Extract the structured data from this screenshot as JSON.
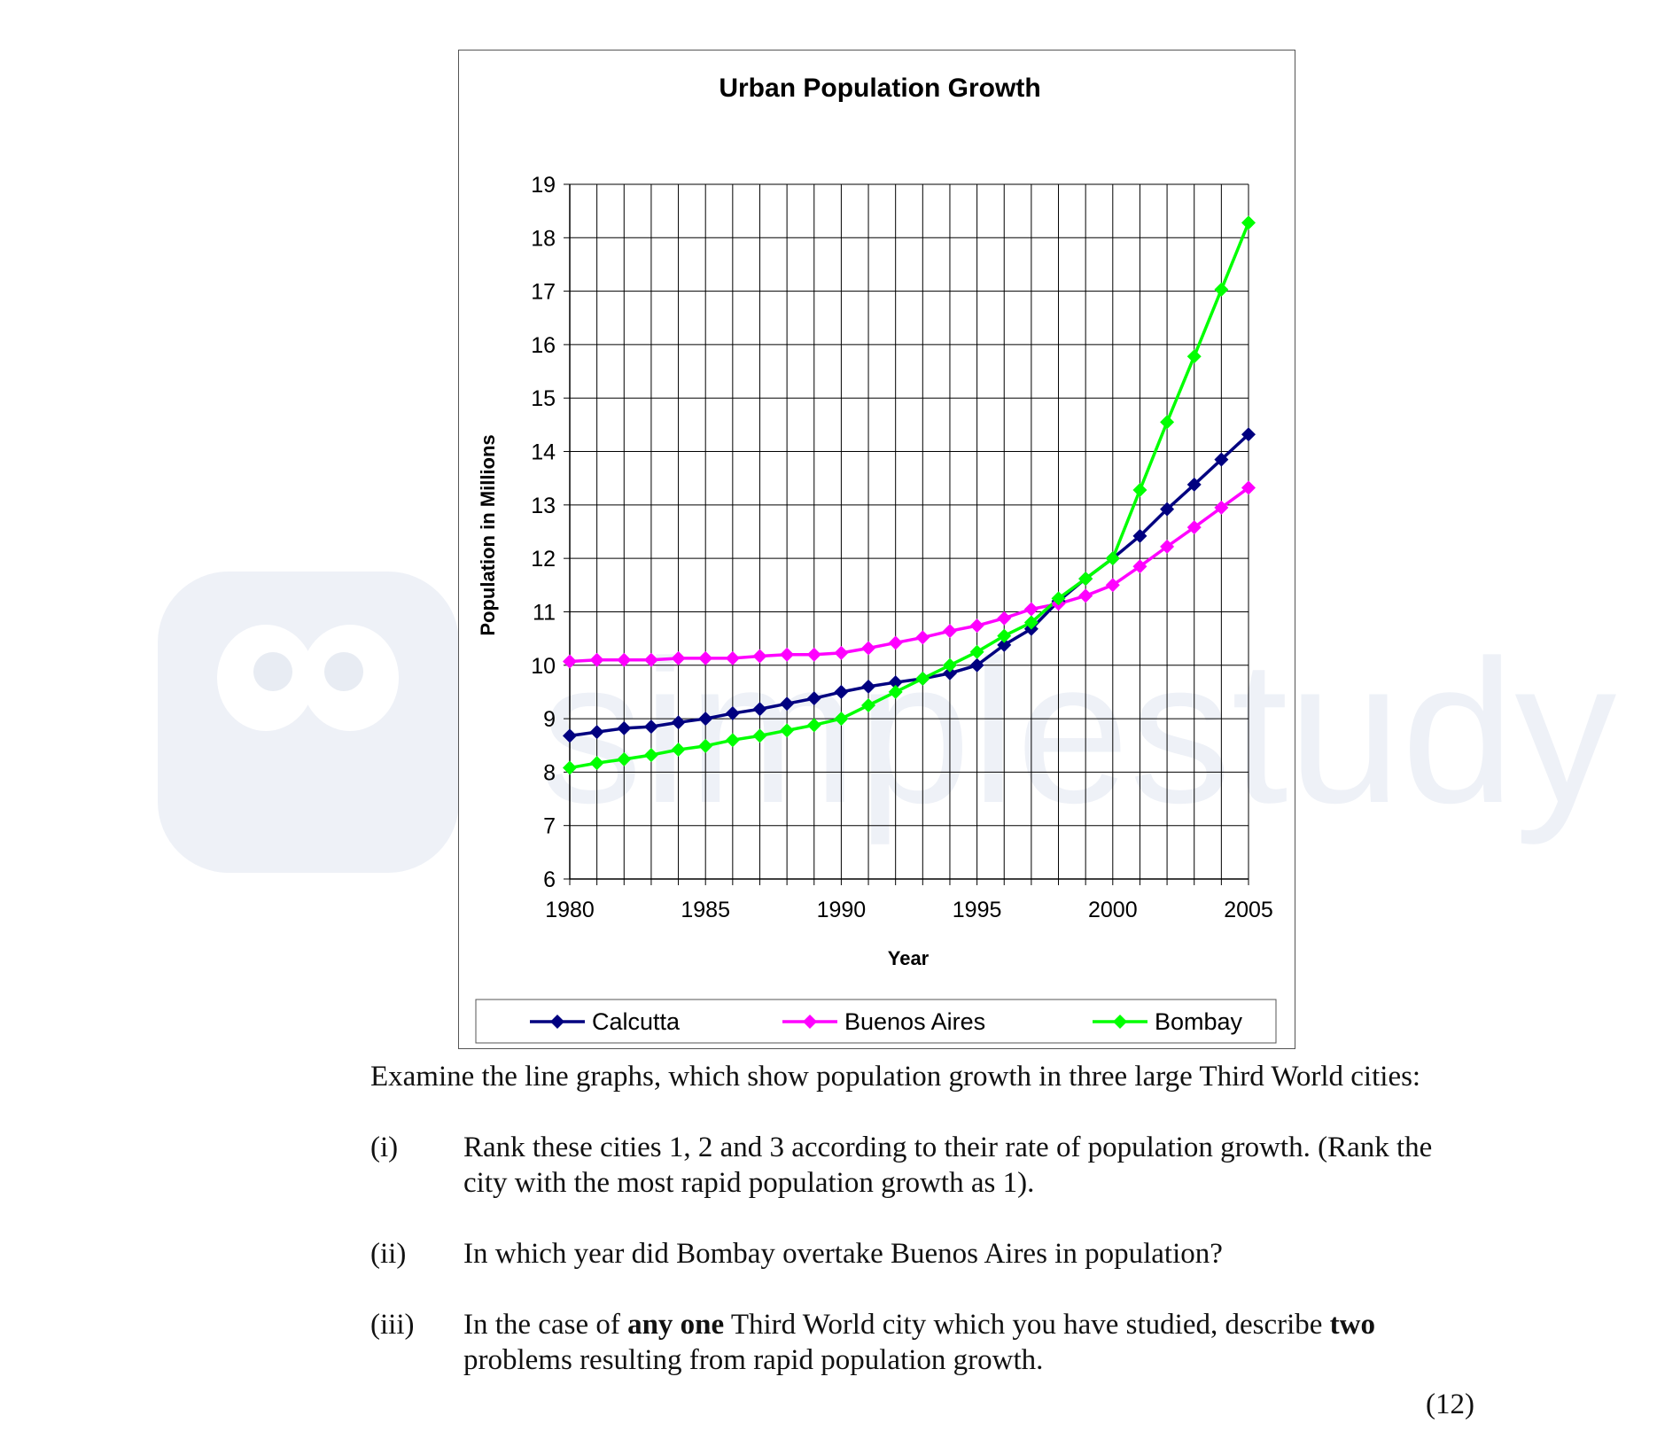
{
  "watermark": {
    "text": "simplestudy"
  },
  "chart_data": {
    "type": "line",
    "title": "Urban Population Growth",
    "xlabel": "Year",
    "ylabel": "Population in Millions",
    "xlim": [
      1980,
      2005
    ],
    "ylim": [
      6,
      19
    ],
    "x_ticks": [
      1980,
      1985,
      1990,
      1995,
      2000,
      2005
    ],
    "y_ticks": [
      6,
      7,
      8,
      9,
      10,
      11,
      12,
      13,
      14,
      15,
      16,
      17,
      18,
      19
    ],
    "grid": true,
    "legend_position": "bottom",
    "x": [
      1980,
      1981,
      1982,
      1983,
      1984,
      1985,
      1986,
      1987,
      1988,
      1989,
      1990,
      1991,
      1992,
      1993,
      1994,
      1995,
      1996,
      1997,
      1998,
      1999,
      2000,
      2001,
      2002,
      2003,
      2004,
      2005
    ],
    "series": [
      {
        "name": "Calcutta",
        "color": "#000080",
        "values": [
          8.68,
          8.75,
          8.82,
          8.85,
          8.93,
          9.0,
          9.1,
          9.18,
          9.28,
          9.38,
          9.5,
          9.6,
          9.68,
          9.75,
          9.85,
          10.0,
          10.38,
          10.68,
          11.2,
          11.62,
          12.0,
          12.42,
          12.92,
          13.38,
          13.85,
          14.32
        ]
      },
      {
        "name": "Buenos Aires",
        "color": "#ff00ff",
        "values": [
          10.07,
          10.1,
          10.1,
          10.1,
          10.13,
          10.13,
          10.13,
          10.17,
          10.2,
          10.2,
          10.23,
          10.32,
          10.42,
          10.52,
          10.64,
          10.74,
          10.88,
          11.05,
          11.15,
          11.3,
          11.5,
          11.85,
          12.22,
          12.58,
          12.95,
          13.32
        ]
      },
      {
        "name": "Bombay",
        "color": "#00ff00",
        "values": [
          8.08,
          8.17,
          8.24,
          8.32,
          8.42,
          8.49,
          8.6,
          8.68,
          8.78,
          8.88,
          9.0,
          9.25,
          9.5,
          9.75,
          10.0,
          10.25,
          10.55,
          10.8,
          11.25,
          11.62,
          12.0,
          13.28,
          14.55,
          15.78,
          17.03,
          18.28
        ]
      }
    ]
  },
  "question": {
    "intro": "Examine the line graphs, which show population growth in three large Third World cities:",
    "items": [
      {
        "num": "(i)",
        "text": "Rank these cities 1, 2 and 3 according to their rate of population growth.  (Rank the city with the most rapid population growth as 1)."
      },
      {
        "num": "(ii)",
        "text": "In which year did Bombay overtake Buenos Aires in population?"
      },
      {
        "num": "(iii)",
        "text_parts": [
          "In the case of ",
          "any one",
          " Third World city which you have studied, describe ",
          "two",
          " problems resulting from rapid population growth."
        ]
      }
    ],
    "marks": "(12)"
  }
}
